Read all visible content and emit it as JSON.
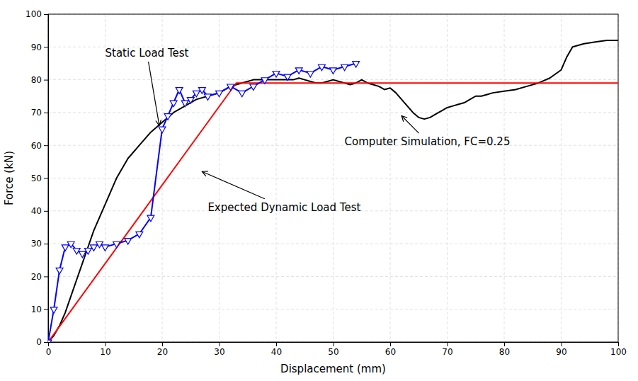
{
  "chart_data": {
    "type": "line",
    "xlabel": "Displacement (mm)",
    "ylabel": "Force (kN)",
    "xlim": [
      0,
      100
    ],
    "ylim": [
      0,
      100
    ],
    "xticks": [
      0,
      10,
      20,
      30,
      40,
      50,
      60,
      70,
      80,
      90,
      100
    ],
    "yticks": [
      0,
      10,
      20,
      30,
      40,
      50,
      60,
      70,
      80,
      90,
      100
    ],
    "grid": true,
    "series": [
      {
        "color": "#000000",
        "x": [
          0,
          1,
          2,
          3,
          4,
          5,
          6,
          7,
          8,
          9,
          10,
          12,
          14,
          16,
          18,
          20,
          22,
          24,
          26,
          28,
          30,
          32,
          34,
          35,
          36,
          37,
          38,
          39,
          40,
          41,
          42,
          43,
          44,
          45,
          46,
          47,
          48,
          49,
          50,
          51,
          52,
          53,
          54,
          55,
          56,
          57,
          58,
          59,
          60,
          61,
          62,
          63,
          64,
          65,
          66,
          67,
          68,
          69,
          70,
          71,
          72,
          73,
          74,
          75,
          76,
          77,
          78,
          80,
          82,
          84,
          86,
          88,
          90,
          91,
          92,
          94,
          96,
          98,
          100
        ],
        "values": [
          0,
          2,
          5,
          9,
          14,
          19,
          24,
          29,
          34,
          38,
          42,
          50,
          56,
          60,
          64,
          67,
          70,
          72,
          74,
          75,
          76,
          78,
          79,
          79.5,
          80,
          80,
          80,
          80,
          80,
          80,
          80,
          80,
          80.5,
          80,
          79.5,
          79,
          79,
          79.5,
          80,
          79.5,
          79,
          78.5,
          79,
          80,
          79,
          78.5,
          78,
          77,
          77.5,
          76,
          74,
          72,
          70,
          68.5,
          68,
          68.5,
          69.5,
          70.5,
          71.5,
          72,
          72.5,
          73,
          74,
          75,
          75,
          75.5,
          76,
          76.5,
          77,
          78,
          79,
          80.5,
          83,
          87,
          90,
          91,
          91.5,
          92,
          92
        ]
      },
      {
        "color": "#ff0000",
        "x": [
          0,
          33,
          100
        ],
        "values": [
          0,
          79,
          79
        ]
      },
      {
        "color": "#0000ff",
        "marker": "triangle-down",
        "x": [
          0,
          1,
          2,
          3,
          4,
          5,
          6,
          7,
          8,
          9,
          10,
          12,
          14,
          16,
          18,
          20,
          21,
          22,
          23,
          24,
          25,
          26,
          27,
          28,
          30,
          32,
          34,
          36,
          38,
          40,
          42,
          44,
          46,
          48,
          50,
          52,
          54
        ],
        "values": [
          0,
          10,
          22,
          29,
          30,
          28,
          27,
          28,
          29,
          30,
          29,
          30,
          31,
          33,
          38,
          65,
          69,
          73,
          77,
          73,
          74,
          76,
          77,
          75,
          76,
          78,
          76,
          78,
          80,
          82,
          81,
          83,
          82,
          84,
          83,
          84,
          85
        ]
      }
    ],
    "annotations": [
      {
        "text": "Static Load Test",
        "xy": [
          19.5,
          66
        ],
        "xytext": [
          10,
          87
        ]
      },
      {
        "text": "Expected Dynamic Load Test",
        "xy": [
          27,
          52
        ],
        "xytext": [
          28,
          40
        ]
      },
      {
        "text": "Computer Simulation, FC=0.25",
        "xy": [
          62,
          69
        ],
        "xytext": [
          52,
          60
        ]
      }
    ]
  }
}
